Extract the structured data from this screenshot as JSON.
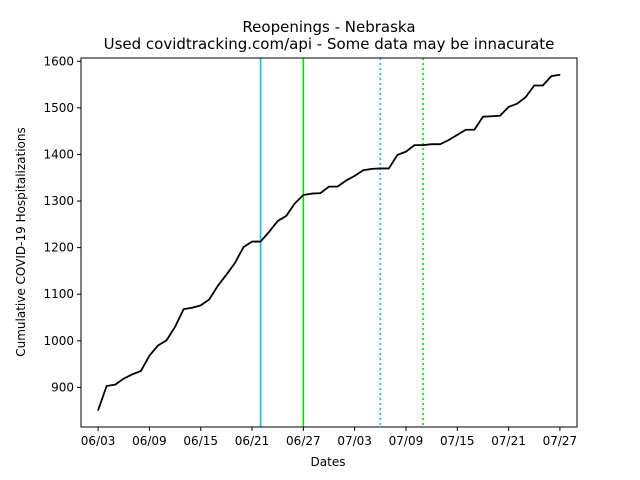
{
  "chart_data": {
    "type": "line",
    "title": "Reopenings - Nebraska",
    "subtitle": "Used covidtracking.com/api - Some data may be innacurate",
    "xlabel": "Dates",
    "ylabel": "Cumulative COVID-19 Hospitalizations",
    "x_tick_labels": [
      "06/03",
      "06/09",
      "06/15",
      "06/21",
      "06/27",
      "07/03",
      "07/09",
      "07/15",
      "07/21",
      "07/27"
    ],
    "y_ticks": [
      900,
      1000,
      1100,
      1200,
      1300,
      1400,
      1500,
      1600
    ],
    "xlim": [
      "2020-06-01",
      "2020-07-29"
    ],
    "ylim": [
      815,
      1607
    ],
    "grid": false,
    "series": [
      {
        "color": "#000000",
        "x": [
          "2020-06-03",
          "2020-06-04",
          "2020-06-05",
          "2020-06-06",
          "2020-06-07",
          "2020-06-08",
          "2020-06-09",
          "2020-06-10",
          "2020-06-11",
          "2020-06-12",
          "2020-06-13",
          "2020-06-14",
          "2020-06-15",
          "2020-06-16",
          "2020-06-17",
          "2020-06-18",
          "2020-06-19",
          "2020-06-20",
          "2020-06-21",
          "2020-06-22",
          "2020-06-23",
          "2020-06-24",
          "2020-06-25",
          "2020-06-26",
          "2020-06-27",
          "2020-06-28",
          "2020-06-29",
          "2020-06-30",
          "2020-07-01",
          "2020-07-02",
          "2020-07-03",
          "2020-07-04",
          "2020-07-05",
          "2020-07-06",
          "2020-07-07",
          "2020-07-08",
          "2020-07-09",
          "2020-07-10",
          "2020-07-11",
          "2020-07-12",
          "2020-07-13",
          "2020-07-14",
          "2020-07-15",
          "2020-07-16",
          "2020-07-17",
          "2020-07-18",
          "2020-07-19",
          "2020-07-20",
          "2020-07-21",
          "2020-07-22",
          "2020-07-23",
          "2020-07-24",
          "2020-07-25",
          "2020-07-26",
          "2020-07-27"
        ],
        "y": [
          851,
          903,
          906,
          919,
          928,
          935,
          968,
          990,
          1001,
          1030,
          1068,
          1071,
          1076,
          1089,
          1118,
          1142,
          1167,
          1201,
          1213,
          1213,
          1234,
          1257,
          1268,
          1295,
          1313,
          1316,
          1317,
          1331,
          1331,
          1344,
          1354,
          1366,
          1369,
          1370,
          1370,
          1399,
          1406,
          1420,
          1420,
          1422,
          1422,
          1431,
          1442,
          1453,
          1453,
          1481,
          1482,
          1483,
          1502,
          1509,
          1523,
          1548,
          1548,
          1568,
          1571
        ]
      }
    ],
    "vlines": [
      {
        "x": "2020-06-22",
        "color": "#1cb5e6",
        "style": "solid"
      },
      {
        "x": "2020-06-27",
        "color": "#00e000",
        "style": "solid"
      },
      {
        "x": "2020-07-06",
        "color": "#1cb5e6",
        "style": "dotted"
      },
      {
        "x": "2020-07-11",
        "color": "#00e000",
        "style": "dotted"
      }
    ]
  }
}
